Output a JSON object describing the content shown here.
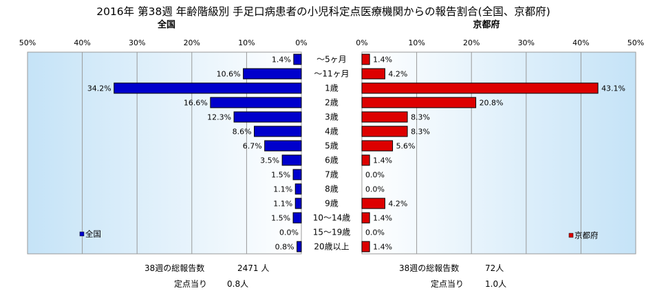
{
  "chart_data": {
    "type": "bar",
    "title": "2016年 第38週 年齢階級別 手足口病患者の小児科定点医療機関からの報告割合(全国、京都府)",
    "categories": [
      "～5ヶ月",
      "～11ヶ月",
      "1歳",
      "2歳",
      "3歳",
      "4歳",
      "5歳",
      "6歳",
      "7歳",
      "8歳",
      "9歳",
      "10～14歳",
      "15～19歳",
      "20歳以上"
    ],
    "x_ticks": [
      "0%",
      "10%",
      "20%",
      "30%",
      "40%",
      "50%"
    ],
    "xlim": [
      0,
      50
    ],
    "grid": true,
    "series": [
      {
        "name": "全国",
        "panel_title": "全国",
        "color": "#0000cc",
        "values": [
          1.4,
          10.6,
          34.2,
          16.6,
          12.3,
          8.6,
          6.7,
          3.5,
          1.5,
          1.1,
          1.1,
          1.5,
          0.0,
          0.8
        ],
        "value_labels": [
          "1.4%",
          "10.6%",
          "34.2%",
          "16.6%",
          "12.3%",
          "8.6%",
          "6.7%",
          "3.5%",
          "1.5%",
          "1.1%",
          "1.1%",
          "1.5%",
          "0.0%",
          "0.8%"
        ],
        "legend_placement": "bottom-left"
      },
      {
        "name": "京都府",
        "panel_title": "京都府",
        "color": "#dd0000",
        "values": [
          1.4,
          4.2,
          43.1,
          20.8,
          8.3,
          8.3,
          5.6,
          1.4,
          0.0,
          0.0,
          4.2,
          1.4,
          0.0,
          1.4
        ],
        "value_labels": [
          "1.4%",
          "4.2%",
          "43.1%",
          "20.8%",
          "8.3%",
          "8.3%",
          "5.6%",
          "1.4%",
          "0.0%",
          "0.0%",
          "4.2%",
          "1.4%",
          "0.0%",
          "1.4%"
        ],
        "legend_placement": "bottom-right"
      }
    ]
  },
  "footer": {
    "national": {
      "total_label": "38週の総報告数",
      "total_value": "2471 人",
      "per_label": "定点当り",
      "per_value": "0.8人"
    },
    "kyoto": {
      "total_label": "38週の総報告数",
      "total_value": "72人",
      "per_label": "定点当り",
      "per_value": "1.0人"
    }
  }
}
